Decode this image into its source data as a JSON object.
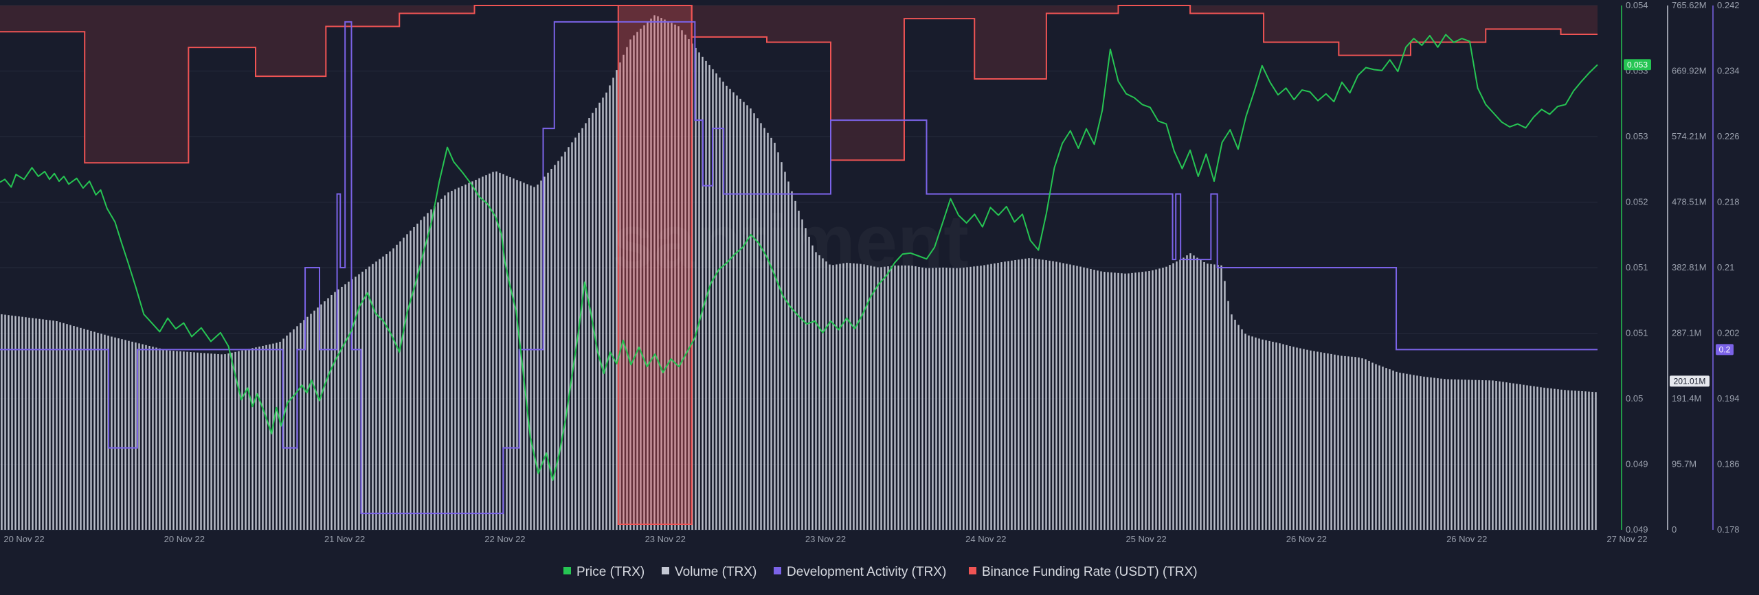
{
  "chart_data": {
    "type": "line",
    "title": "",
    "watermark": "santiment",
    "x_axis": {
      "ticks": [
        "20 Nov 22",
        "20 Nov 22",
        "21 Nov 22",
        "22 Nov 22",
        "23 Nov 22",
        "23 Nov 22",
        "24 Nov 22",
        "25 Nov 22",
        "26 Nov 22",
        "26 Nov 22",
        "27 Nov 22"
      ]
    },
    "axes": {
      "price": {
        "label_ticks": [
          "0.054",
          "0.053",
          "0.053",
          "0.052",
          "0.051",
          "0.051",
          "0.05",
          "0.049",
          "0.049"
        ],
        "range": [
          0.0488,
          0.0542
        ],
        "color": "#26c553"
      },
      "volume": {
        "label_ticks": [
          "765.62M",
          "669.92M",
          "574.21M",
          "478.51M",
          "382.81M",
          "287.1M",
          "191.4M",
          "95.7M",
          "0"
        ],
        "range": [
          0,
          765.62
        ],
        "unit": "M",
        "color": "#c4c8d4"
      },
      "dev_activity": {
        "label_ticks": [
          "0.242",
          "0.234",
          "0.226",
          "0.218",
          "0.21",
          "0.202",
          "0.194",
          "0.186",
          "0.178"
        ],
        "range": [
          0.178,
          0.242
        ],
        "color": "#7b63e8"
      }
    },
    "current_values": {
      "price": "0.053",
      "volume": "201.01M",
      "dev_activity": "0.2"
    },
    "series": [
      {
        "name": "Price (TRX)",
        "color": "#26c553",
        "axis": "price",
        "x": [
          0,
          0.3,
          0.7,
          1.0,
          1.5,
          2.0,
          2.4,
          2.8,
          3.1,
          3.4,
          3.7,
          4.0,
          4.3,
          4.8,
          5.2,
          5.6,
          6.0,
          6.3,
          6.7,
          7.2,
          7.6,
          8.0,
          8.5,
          9.0,
          9.5,
          10.0,
          10.5,
          11.0,
          11.5,
          12.0,
          12.6,
          13.2,
          13.8,
          14.3,
          14.7,
          15.1,
          15.5,
          15.8,
          16.1,
          16.5,
          17.0,
          17.3,
          17.6,
          18.0,
          18.5,
          18.9,
          19.2,
          19.5,
          20.0,
          20.3,
          20.6,
          21.0,
          21.5,
          22.0,
          22.5,
          23.0,
          23.5,
          24.0,
          24.5,
          25.0,
          25.5,
          26.0,
          26.5,
          27.0,
          27.5,
          28.0,
          28.4,
          29.0,
          29.5,
          30.0,
          30.5,
          31.0,
          31.4,
          31.6,
          31.9,
          32.3,
          32.7,
          33.2,
          33.7,
          34.2,
          34.6,
          35.0,
          35.4,
          35.8,
          36.2,
          36.6,
          37.0,
          37.4,
          37.8,
          38.2,
          38.6,
          39.0,
          39.5,
          40.0,
          40.5,
          41.0,
          41.5,
          42.0,
          42.5,
          43.0,
          43.5,
          44.0,
          44.5,
          45.0,
          45.5,
          46.0,
          46.5,
          47.0,
          47.5,
          48.0,
          48.5,
          49.0,
          49.5,
          50.0,
          50.5,
          51.0,
          51.5,
          52.0,
          52.5,
          53.0,
          53.5,
          54.0,
          54.5,
          55.0,
          55.5,
          56.0,
          56.5,
          57.0,
          57.5,
          58.0,
          58.5,
          59.0,
          59.5,
          60.0,
          60.5,
          61.0,
          61.5,
          62.0,
          62.5,
          63.0,
          63.5,
          64.0,
          64.5,
          65.0,
          65.5,
          66.0,
          66.5,
          67.0,
          67.5,
          68.0,
          68.5,
          69.0,
          69.5,
          70.0,
          70.5,
          71.0,
          71.5,
          72.0,
          72.5,
          73.0,
          73.5,
          74.0,
          74.5,
          75.0,
          75.5,
          76.0,
          76.5,
          77.0,
          77.5,
          78.0,
          78.5,
          79.0,
          79.5,
          80.0,
          80.5,
          81.0,
          81.5,
          82.0,
          82.5,
          83.0,
          83.5,
          84.0,
          84.5,
          85.0,
          85.5,
          86.0,
          86.5,
          87.0,
          87.5,
          88.0,
          88.5,
          89.0,
          89.5,
          90.0,
          90.5,
          91.0,
          91.5,
          92.0,
          92.5,
          93.0,
          93.5,
          94.0,
          94.5,
          95.0,
          95.5,
          96.0,
          96.5,
          97.0,
          97.5,
          98.0,
          98.5,
          99.0,
          99.5,
          100.0
        ],
        "values": [
          0.05238,
          0.05241,
          0.05233,
          0.05246,
          0.05241,
          0.05253,
          0.05244,
          0.05249,
          0.05241,
          0.05247,
          0.05239,
          0.05244,
          0.05236,
          0.05242,
          0.05232,
          0.05239,
          0.05225,
          0.0523,
          0.05211,
          0.05197,
          0.05176,
          0.05156,
          0.0513,
          0.05102,
          0.05093,
          0.05084,
          0.05098,
          0.05087,
          0.05093,
          0.05079,
          0.05088,
          0.05074,
          0.05083,
          0.05069,
          0.05041,
          0.05014,
          0.05026,
          0.05007,
          0.0502,
          0.05003,
          0.04979,
          0.05006,
          0.04987,
          0.05011,
          0.0502,
          0.05029,
          0.05021,
          0.05034,
          0.05013,
          0.05028,
          0.05041,
          0.05055,
          0.0507,
          0.05085,
          0.0511,
          0.05124,
          0.05103,
          0.05095,
          0.05081,
          0.05063,
          0.05105,
          0.05133,
          0.05165,
          0.05196,
          0.05239,
          0.05274,
          0.05259,
          0.05247,
          0.05236,
          0.05223,
          0.05216,
          0.05203,
          0.05184,
          0.05156,
          0.05133,
          0.05106,
          0.05049,
          0.04975,
          0.04938,
          0.04959,
          0.04931,
          0.04958,
          0.04993,
          0.05038,
          0.05083,
          0.05135,
          0.05102,
          0.05064,
          0.05041,
          0.05063,
          0.05051,
          0.05075,
          0.0505,
          0.05068,
          0.05048,
          0.05061,
          0.05042,
          0.05056,
          0.05048,
          0.05063,
          0.05078,
          0.05108,
          0.05134,
          0.05148,
          0.05155,
          0.05164,
          0.05171,
          0.05184,
          0.05175,
          0.05161,
          0.05142,
          0.05121,
          0.05109,
          0.051,
          0.05092,
          0.05095,
          0.05083,
          0.05095,
          0.05086,
          0.05098,
          0.05087,
          0.05102,
          0.0512,
          0.05133,
          0.05142,
          0.05155,
          0.05164,
          0.05165,
          0.05162,
          0.05159,
          0.05171,
          0.05196,
          0.05221,
          0.05204,
          0.05196,
          0.05205,
          0.05192,
          0.05212,
          0.05204,
          0.05213,
          0.05197,
          0.05205,
          0.05178,
          0.05168,
          0.05206,
          0.05253,
          0.05278,
          0.05291,
          0.05273,
          0.05293,
          0.05277,
          0.05312,
          0.05375,
          0.05342,
          0.05329,
          0.05325,
          0.05318,
          0.05315,
          0.05301,
          0.05298,
          0.0527,
          0.05252,
          0.05271,
          0.05244,
          0.05267,
          0.05239,
          0.05279,
          0.05292,
          0.05272,
          0.05306,
          0.05331,
          0.05358,
          0.05341,
          0.05328,
          0.05335,
          0.05323,
          0.05333,
          0.05331,
          0.05322,
          0.05329,
          0.05321,
          0.05341,
          0.0533,
          0.05348,
          0.05356,
          0.05354,
          0.05353,
          0.05364,
          0.05352,
          0.05377,
          0.05386,
          0.05379,
          0.05389,
          0.05377,
          0.0539,
          0.05382,
          0.05386,
          0.05383,
          0.05335,
          0.05318,
          0.05309,
          0.053,
          0.05295,
          0.05298,
          0.05294,
          0.05305,
          0.05313,
          0.05308,
          0.05316,
          0.05318,
          0.05332,
          0.05342,
          0.05351,
          0.05359
        ]
      },
      {
        "name": "Volume (TRX)",
        "color": "#c4c8d4",
        "axis": "volume",
        "x": [
          0,
          3.5,
          7.0,
          10.5,
          14.0,
          17.5,
          21.0,
          24.5,
          28.0,
          31.0,
          33.5,
          35.0,
          36.5,
          38.0,
          39.5,
          41.0,
          42.5,
          44.0,
          45.5,
          47.0,
          48.5,
          50.0,
          51.0,
          52.0,
          53.0,
          54.0,
          55.0,
          56.0,
          57.0,
          58.0,
          59.0,
          60.0,
          61.5,
          63.0,
          64.5,
          66.0,
          67.5,
          69.0,
          70.5,
          72.0,
          73.0,
          74.0,
          74.5,
          75.5,
          76.5,
          77.0,
          77.5,
          78.0,
          79.0,
          80.0,
          81.0,
          82.0,
          83.0,
          84.0,
          85.0,
          85.5,
          86.0,
          87.5,
          89.0,
          90.5,
          92.0,
          93.5,
          95.0,
          96.5,
          98.0,
          100.0
        ],
        "values": [
          315,
          305,
          282,
          262,
          256,
          274,
          348,
          408,
          492,
          524,
          500,
          540,
          588,
          640,
          718,
          752,
          735,
          690,
          648,
          615,
          565,
          466,
          407,
          386,
          390,
          388,
          383,
          386,
          386,
          382,
          383,
          382,
          386,
          392,
          397,
          392,
          385,
          377,
          374,
          378,
          384,
          396,
          404,
          389,
          386,
          318,
          300,
          285,
          278,
          273,
          267,
          262,
          258,
          254,
          252,
          249,
          243,
          230,
          224,
          220,
          219,
          218,
          213,
          208,
          204,
          201.01
        ]
      },
      {
        "name": "Development Activity (TRX)",
        "color": "#7b63e8",
        "axis": "dev_activity",
        "step": true,
        "x": [
          0,
          6.8,
          8.6,
          17.7,
          18.6,
          19.1,
          20.0,
          21.1,
          21.3,
          21.6,
          22.0,
          22.6,
          31.5,
          32.5,
          34.0,
          34.7,
          35.5,
          43.5,
          44.0,
          44.6,
          45.3,
          45.6,
          52.0,
          58.0,
          73.4,
          73.6,
          73.9,
          75.8,
          76.2,
          78.6,
          87.4,
          100.0
        ],
        "values": [
          0.2,
          0.188,
          0.2,
          0.188,
          0.2,
          0.21,
          0.2,
          0.219,
          0.21,
          0.24,
          0.2,
          0.18,
          0.188,
          0.2,
          0.227,
          0.24,
          0.24,
          0.228,
          0.22,
          0.227,
          0.219,
          0.219,
          0.228,
          0.219,
          0.211,
          0.219,
          0.211,
          0.219,
          0.21,
          0.21,
          0.2,
          0.2
        ]
      },
      {
        "name": "Binance Funding Rate (USDT) (TRX)",
        "color": "#f05454",
        "axis": "funding",
        "step": true,
        "note_scale": "no printed axis",
        "x": [
          0,
          5.3,
          11.8,
          16.0,
          20.4,
          25.0,
          29.7,
          34.0,
          38.7,
          43.3,
          48.0,
          52.0,
          56.6,
          61.0,
          65.5,
          70.0,
          74.5,
          79.1,
          83.8,
          88.3,
          93.0,
          97.7,
          100.0
        ],
        "values": [
          0.9,
          0.4,
          0.84,
          0.73,
          0.92,
          0.97,
          1.0,
          1.0,
          1.0,
          0.88,
          0.86,
          0.41,
          0.95,
          0.72,
          0.97,
          1.0,
          0.97,
          0.86,
          0.81,
          0.86,
          0.91,
          0.89,
          0.89
        ]
      }
    ],
    "legend_position": "bottom-center",
    "grid": true
  }
}
